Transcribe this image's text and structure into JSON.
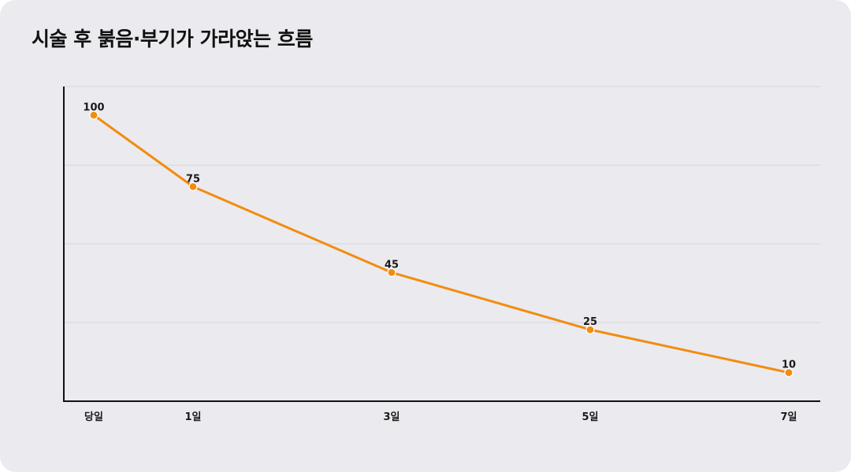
{
  "title": "시술 후 붉음·부기가 가라앉는 흐름",
  "colors": {
    "background": "#ebeaef",
    "line": "#f28c0f",
    "gridline": "#d6d5da",
    "axis": "#111111"
  },
  "chart_data": {
    "type": "line",
    "title": "시술 후 붉음·부기가 가라앉는 흐름",
    "xlabel": "",
    "ylabel": "",
    "categories": [
      "당일",
      "1일",
      "3일",
      "5일",
      "7일"
    ],
    "x": [
      0,
      1,
      3,
      5,
      7
    ],
    "series": [
      {
        "values": [
          100,
          75,
          45,
          25,
          10
        ]
      }
    ],
    "ylim": [
      0,
      110
    ],
    "y_gridlines": [
      27.5,
      55,
      82.5,
      110
    ],
    "grid": true,
    "legend": "none"
  }
}
